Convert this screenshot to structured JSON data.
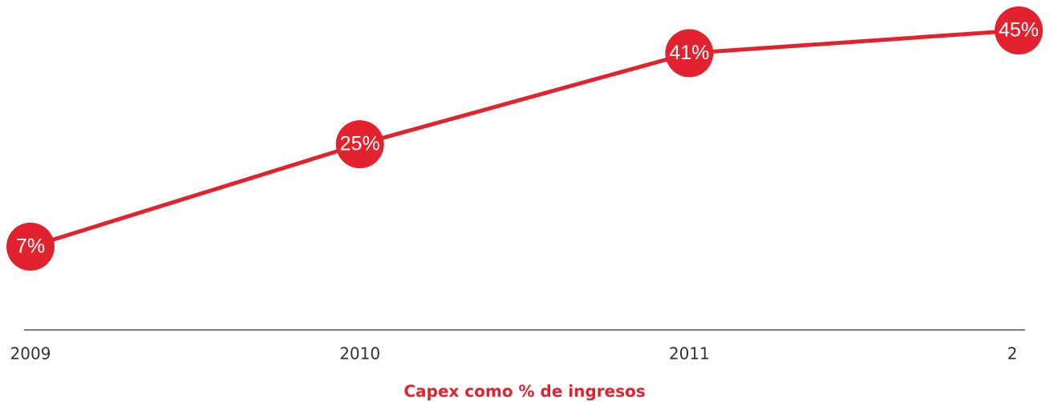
{
  "chart_data": {
    "type": "line",
    "title": "Capex como % de ingresos",
    "categories": [
      "2009",
      "2010",
      "2011",
      "2"
    ],
    "values": [
      7,
      25,
      41,
      45
    ],
    "value_labels": [
      "7%",
      "25%",
      "41%",
      "45%"
    ],
    "color": "#e2232f"
  }
}
